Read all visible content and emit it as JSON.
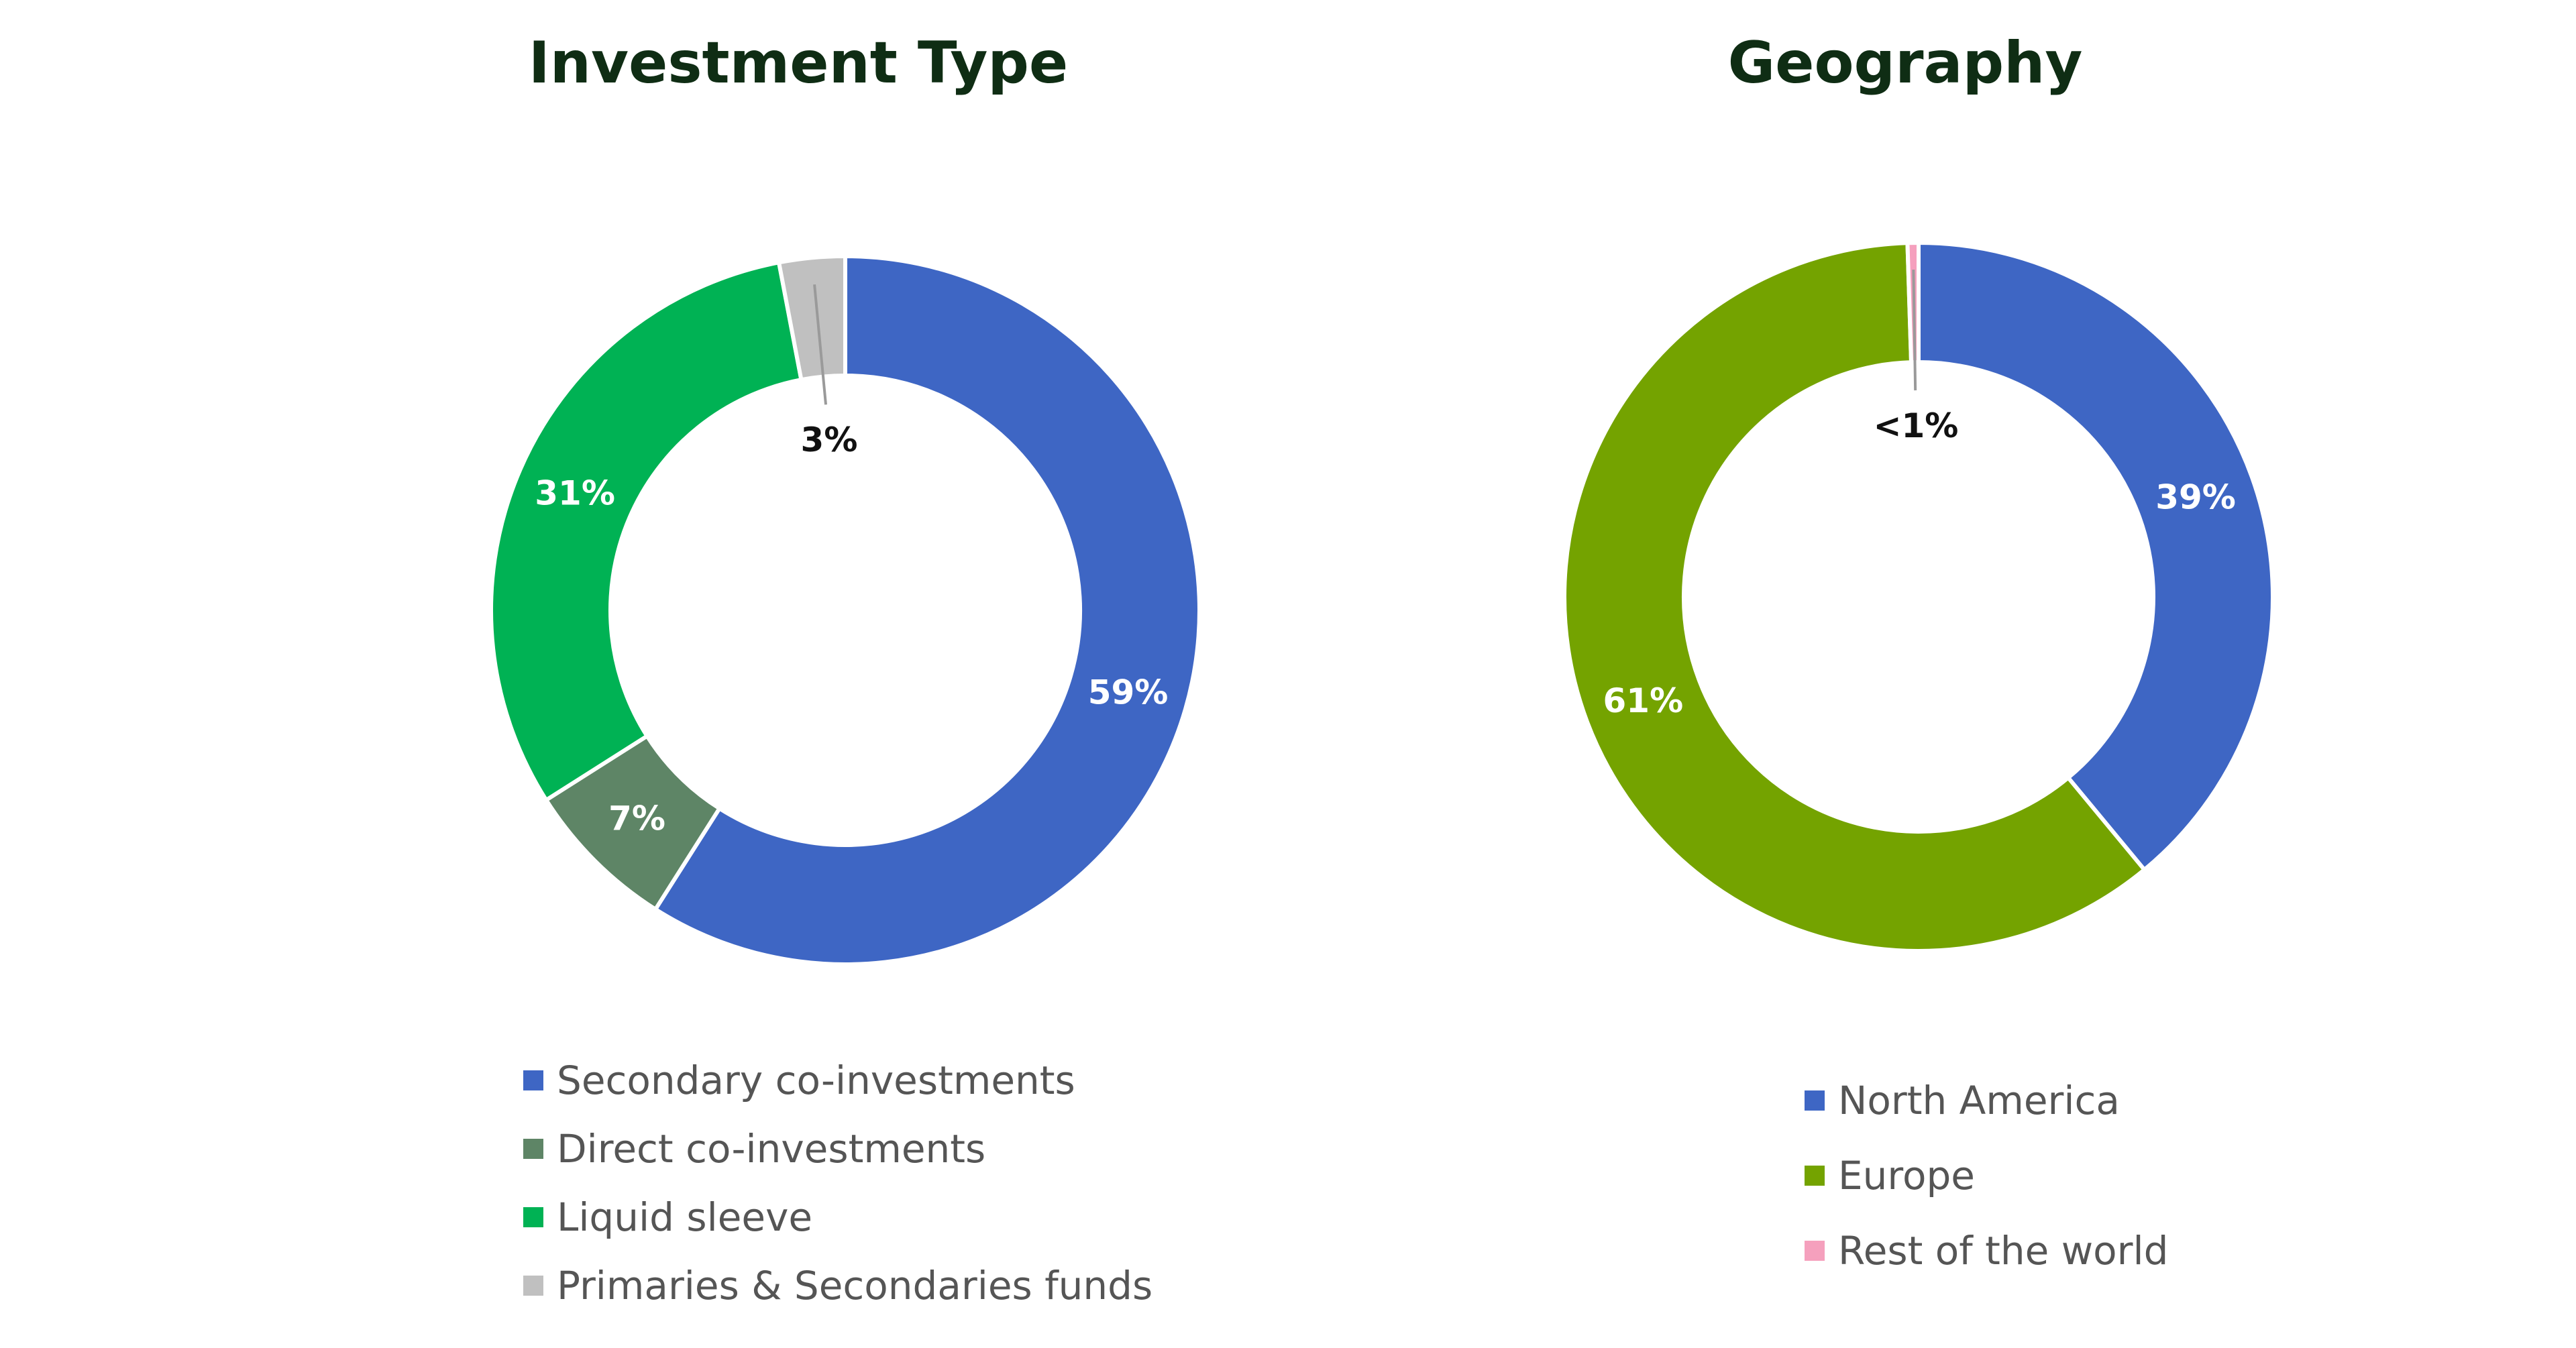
{
  "chart_data": [
    {
      "type": "pie",
      "title": "Investment Type",
      "categories": [
        "Secondary co-investments",
        "Direct co-investments",
        "Liquid sleeve",
        "Primaries & Secondaries funds"
      ],
      "values": [
        59,
        7,
        31,
        3
      ],
      "labels": [
        "59%",
        "7%",
        "31%",
        "3%"
      ],
      "colors": [
        "#3e66c4",
        "#5e8566",
        "#00b254",
        "#c0c0c0"
      ],
      "label_colors": [
        "#ffffff",
        "#ffffff",
        "#ffffff",
        "#111111"
      ],
      "donut": true,
      "legend_position": "bottom"
    },
    {
      "type": "pie",
      "title": "Geography",
      "categories": [
        "North America",
        "Europe",
        "Rest of the world"
      ],
      "values": [
        39,
        60.5,
        0.5
      ],
      "labels": [
        "39%",
        "61%",
        "<1%"
      ],
      "colors": [
        "#3e66c4",
        "#74a300",
        "#f5a0bd"
      ],
      "label_colors": [
        "#ffffff",
        "#ffffff",
        "#111111"
      ],
      "donut": true,
      "legend_position": "bottom"
    }
  ]
}
